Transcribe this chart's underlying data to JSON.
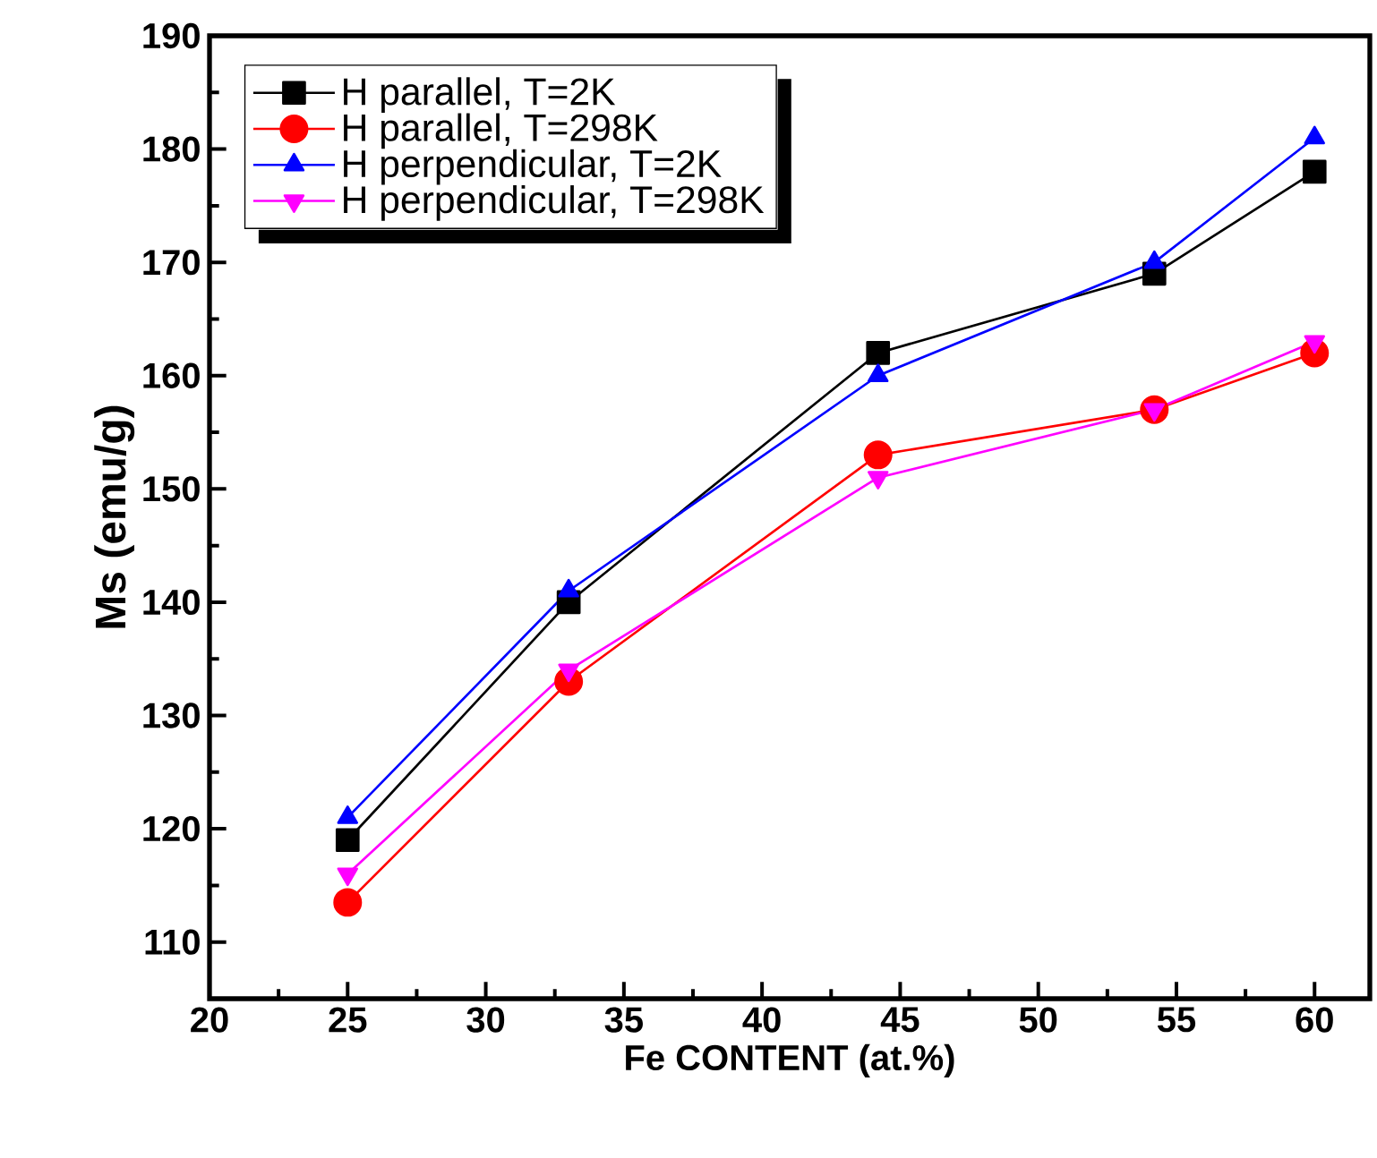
{
  "chart_data": {
    "type": "line",
    "xlabel": "Fe CONTENT (at.%)",
    "ylabel": "Ms (emu/g)",
    "x": [
      25,
      33,
      44.2,
      54.2,
      60
    ],
    "series": [
      {
        "name": "H parallel, T=2K",
        "color": "#000000",
        "marker": "square",
        "values": [
          119,
          140,
          162,
          169,
          178
        ]
      },
      {
        "name": "H parallel, T=298K",
        "color": "#ff0000",
        "marker": "circle",
        "values": [
          113.5,
          133,
          153,
          157,
          162
        ]
      },
      {
        "name": "H perpendicular, T=2K",
        "color": "#0000ff",
        "marker": "triangle",
        "values": [
          121,
          141,
          160,
          170,
          181
        ]
      },
      {
        "name": "H perpendicular, T=298K",
        "color": "#ff00ff",
        "marker": "triangle down",
        "values": [
          116,
          134,
          151,
          157,
          163
        ]
      }
    ],
    "xlim": [
      20,
      62
    ],
    "ylim": [
      105,
      190
    ],
    "xticks": [
      20,
      25,
      30,
      35,
      40,
      45,
      50,
      55,
      60
    ],
    "yticks": [
      110,
      120,
      130,
      140,
      150,
      160,
      170,
      180,
      190
    ],
    "legend": "top left",
    "grid": false,
    "line_style": "solid"
  }
}
